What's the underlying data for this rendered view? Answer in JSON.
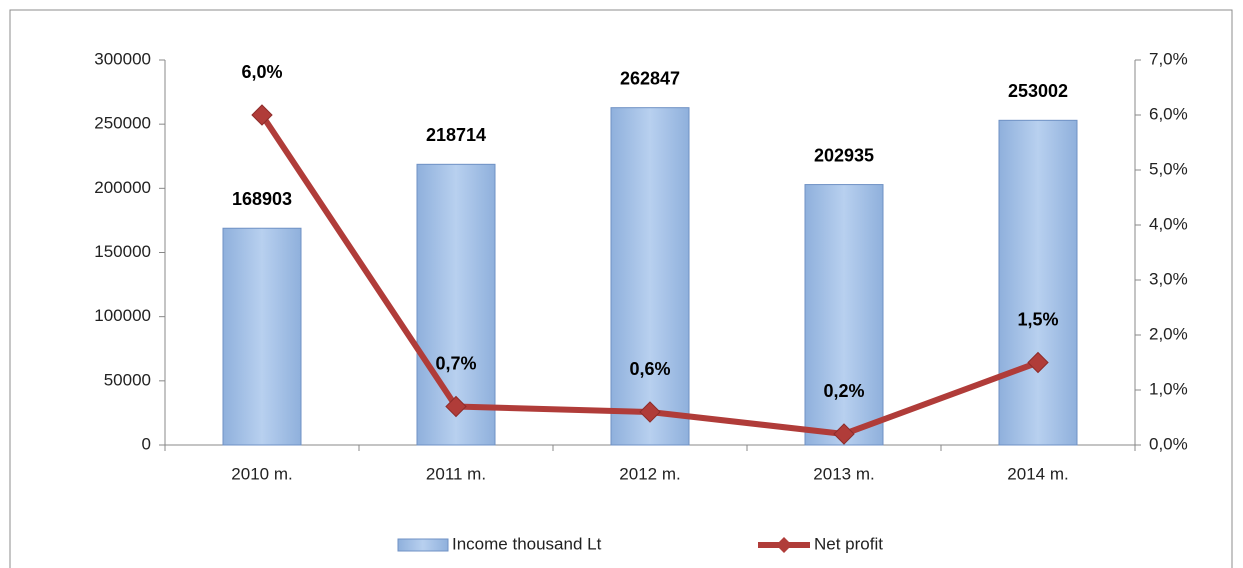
{
  "chart_data": {
    "type": "bar",
    "categories": [
      "2010 m.",
      "2011 m.",
      "2012 m.",
      "2013 m.",
      "2014 m."
    ],
    "series": [
      {
        "name": "Income thousand Lt",
        "type": "bar",
        "color": "#a7c3e6",
        "values": [
          168903,
          218714,
          262847,
          202935,
          253002
        ]
      },
      {
        "name": "Net profit",
        "type": "line",
        "axis": "y2",
        "color": "#b03c39",
        "values": [
          6.0,
          0.7,
          0.6,
          0.2,
          1.5
        ],
        "value_labels": [
          "6,0%",
          "0,7%",
          "0,6%",
          "0,2%",
          "1,5%"
        ]
      }
    ],
    "ylim": [
      0,
      300000
    ],
    "yticks": [
      0,
      50000,
      100000,
      150000,
      200000,
      250000,
      300000
    ],
    "y2lim": [
      0,
      7
    ],
    "y2ticks": [
      {
        "value": 0,
        "label": "0,0%"
      },
      {
        "value": 1,
        "label": "1,0%"
      },
      {
        "value": 2,
        "label": "2,0%"
      },
      {
        "value": 3,
        "label": "3,0%"
      },
      {
        "value": 4,
        "label": "4,0%"
      },
      {
        "value": 5,
        "label": "5,0%"
      },
      {
        "value": 6,
        "label": "6,0%"
      },
      {
        "value": 7,
        "label": "7,0%"
      }
    ],
    "legend": "bottom"
  }
}
